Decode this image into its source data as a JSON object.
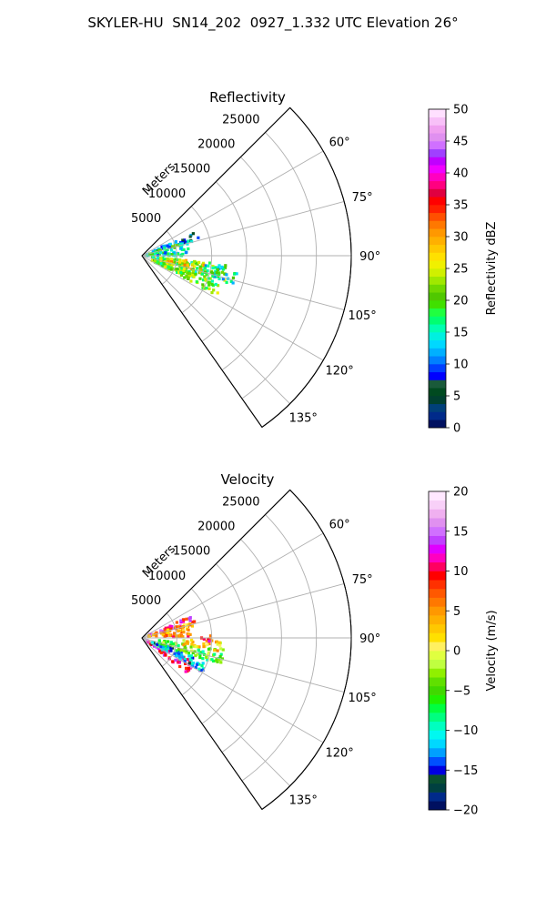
{
  "suptitle": "SKYLER-HU  SN14_202  0927_1.332 UTC Elevation 26°",
  "range_axis_label": "Meters",
  "range_ticks": [
    5000,
    10000,
    15000,
    20000,
    25000
  ],
  "range_tick_labels": [
    "5000",
    "10000",
    "15000",
    "20000",
    "25000"
  ],
  "angle_ticks": [
    60,
    75,
    90,
    105,
    120,
    135
  ],
  "angle_tick_labels": [
    "60°",
    "75°",
    "90°",
    "105°",
    "120°",
    "135°"
  ],
  "chart_data": [
    {
      "type": "heatmap",
      "projection": "polar sector",
      "title": "Reflectivity",
      "theta_range_deg": [
        45,
        145
      ],
      "r_max": 30000,
      "grid": true,
      "colorbar": {
        "label": "Reflectivity dBZ",
        "min": 0,
        "max": 50,
        "ticks": [
          0,
          5,
          10,
          15,
          20,
          25,
          30,
          35,
          40,
          45,
          50
        ],
        "tick_labels": [
          "0",
          "5",
          "10",
          "15",
          "20",
          "25",
          "30",
          "35",
          "40",
          "45",
          "50"
        ],
        "colors": [
          "#001060",
          "#002a8a",
          "#00407a",
          "#004030",
          "#004a20",
          "#1a5a3a",
          "#0000ff",
          "#0040ff",
          "#0080ff",
          "#00b0ff",
          "#00d8ff",
          "#00f0e0",
          "#00ffb0",
          "#00ff70",
          "#20ff40",
          "#40e000",
          "#50c800",
          "#70d800",
          "#a0e800",
          "#d0f000",
          "#f0f000",
          "#ffe000",
          "#ffc800",
          "#ffb000",
          "#ff9800",
          "#ff7800",
          "#ff5000",
          "#ff2000",
          "#ff0000",
          "#e00040",
          "#ff0080",
          "#ff00c0",
          "#f000ff",
          "#c000ff",
          "#a040ff",
          "#d070ff",
          "#e090f0",
          "#f0a0f0",
          "#f8c0f8",
          "#ffe0ff"
        ]
      },
      "echo_regions": [
        {
          "theta": [
            66,
            74
          ],
          "r": [
            1000,
            8500
          ],
          "value": 10
        },
        {
          "theta": [
            72,
            78
          ],
          "r": [
            2000,
            7500
          ],
          "value": 17
        },
        {
          "theta": [
            78,
            90
          ],
          "r": [
            500,
            7000
          ],
          "value": 14
        },
        {
          "theta": [
            96,
            118
          ],
          "r": [
            1500,
            12500
          ],
          "value": 20
        },
        {
          "theta": [
            96,
            106
          ],
          "r": [
            2500,
            9000
          ],
          "value": 27
        },
        {
          "theta": [
            104,
            116
          ],
          "r": [
            2000,
            8000
          ],
          "value": 22
        },
        {
          "theta": [
            98,
            108
          ],
          "r": [
            9000,
            14000
          ],
          "value": 16
        }
      ]
    },
    {
      "type": "heatmap",
      "projection": "polar sector",
      "title": "Velocity",
      "theta_range_deg": [
        45,
        145
      ],
      "r_max": 30000,
      "grid": true,
      "colorbar": {
        "label": "Velocity (m/s)",
        "min": -20,
        "max": 20,
        "ticks": [
          -20,
          -15,
          -10,
          -5,
          0,
          5,
          10,
          15,
          20
        ],
        "tick_labels": [
          "−20",
          "−15",
          "−10",
          "−5",
          "0",
          "5",
          "10",
          "15",
          "20"
        ],
        "colors": [
          "#001060",
          "#002a8a",
          "#004040",
          "#0a5030",
          "#0000e0",
          "#0050ff",
          "#00a0ff",
          "#00d8ff",
          "#00f8f0",
          "#00ffc0",
          "#00ff80",
          "#00ff40",
          "#20f000",
          "#40d800",
          "#60e000",
          "#90f000",
          "#c0ff40",
          "#e0ff40",
          "#fff060",
          "#ffe000",
          "#ffc800",
          "#ffb000",
          "#ff9800",
          "#ff7800",
          "#ff5800",
          "#ff3000",
          "#ff0000",
          "#ff0060",
          "#ff00c0",
          "#e000ff",
          "#c040ff",
          "#d070ff",
          "#e090f0",
          "#f0b0f0",
          "#f8d0f8",
          "#ffe8ff"
        ]
      },
      "echo_regions": [
        {
          "theta": [
            66,
            74
          ],
          "r": [
            1000,
            8000
          ],
          "value": 11
        },
        {
          "theta": [
            72,
            82
          ],
          "r": [
            1000,
            7500
          ],
          "value": 4
        },
        {
          "theta": [
            82,
            90
          ],
          "r": [
            3000,
            7000
          ],
          "value": 6
        },
        {
          "theta": [
            114,
            128
          ],
          "r": [
            800,
            8500
          ],
          "value": 12
        },
        {
          "theta": [
            108,
            120
          ],
          "r": [
            1500,
            10000
          ],
          "value": -12
        },
        {
          "theta": [
            98,
            110
          ],
          "r": [
            2500,
            12000
          ],
          "value": -5
        },
        {
          "theta": [
            92,
            100
          ],
          "r": [
            6000,
            11500
          ],
          "value": 2
        },
        {
          "theta": [
            88,
            94
          ],
          "r": [
            8500,
            10000
          ],
          "value": 10
        }
      ]
    }
  ]
}
